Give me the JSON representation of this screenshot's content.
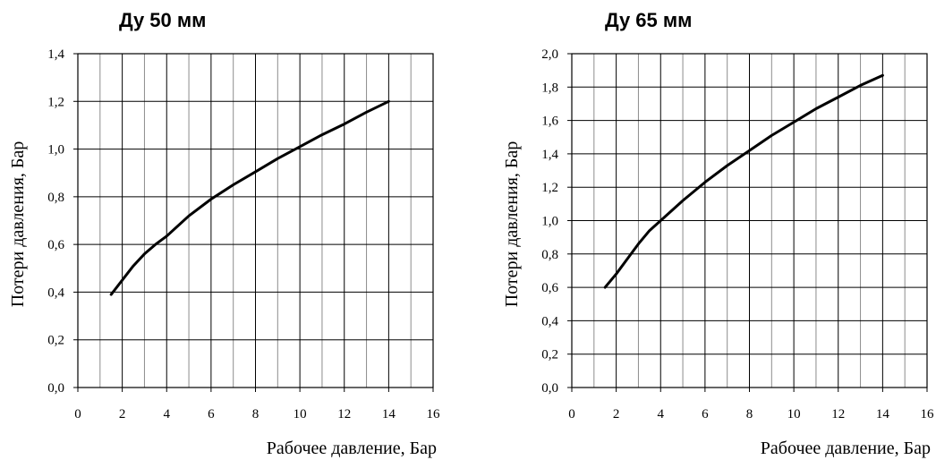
{
  "chart_data": [
    {
      "type": "line",
      "title": "Ду 50 мм",
      "xlabel": "Рабочее давление, Бар",
      "ylabel": "Потери давления, Бар",
      "xlim": [
        0,
        16
      ],
      "ylim": [
        0,
        1.4
      ],
      "x_ticks": [
        "0",
        "2",
        "4",
        "6",
        "8",
        "10",
        "12",
        "14",
        "16"
      ],
      "y_ticks": [
        "0,0",
        "0,2",
        "0,4",
        "0,6",
        "0,8",
        "1,0",
        "1,2",
        "1,4"
      ],
      "grid": true,
      "series": [
        {
          "x": [
            1.5,
            2,
            2.5,
            3,
            3.5,
            4,
            5,
            6,
            7,
            8,
            9,
            10,
            11,
            12,
            13,
            14
          ],
          "y": [
            0.39,
            0.45,
            0.51,
            0.56,
            0.6,
            0.635,
            0.72,
            0.79,
            0.85,
            0.905,
            0.96,
            1.01,
            1.06,
            1.105,
            1.155,
            1.2
          ]
        }
      ]
    },
    {
      "type": "line",
      "title": "Ду 65 мм",
      "xlabel": "Рабочее давление, Бар",
      "ylabel": "Потери давления, Бар",
      "xlim": [
        0,
        16
      ],
      "ylim": [
        0,
        2.0
      ],
      "x_ticks": [
        "0",
        "2",
        "4",
        "6",
        "8",
        "10",
        "12",
        "14",
        "16"
      ],
      "y_ticks": [
        "0,0",
        "0,2",
        "0,4",
        "0,6",
        "0,8",
        "1,0",
        "1,2",
        "1,4",
        "1,6",
        "1,8",
        "2,0"
      ],
      "grid": true,
      "series": [
        {
          "x": [
            1.5,
            2,
            2.5,
            3,
            3.5,
            4,
            5,
            6,
            7,
            8,
            9,
            10,
            11,
            12,
            13,
            14
          ],
          "y": [
            0.6,
            0.68,
            0.77,
            0.86,
            0.94,
            1.0,
            1.12,
            1.23,
            1.33,
            1.42,
            1.51,
            1.59,
            1.67,
            1.74,
            1.81,
            1.87
          ]
        }
      ]
    }
  ]
}
